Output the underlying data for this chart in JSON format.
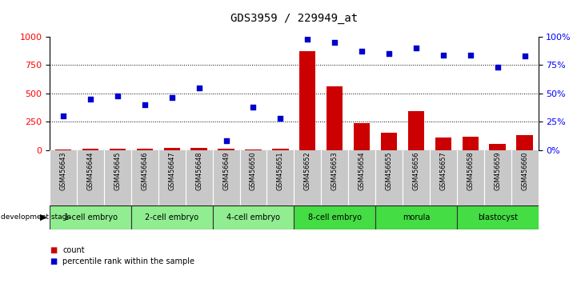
{
  "title": "GDS3959 / 229949_at",
  "samples": [
    "GSM456643",
    "GSM456644",
    "GSM456645",
    "GSM456646",
    "GSM456647",
    "GSM456648",
    "GSM456649",
    "GSM456650",
    "GSM456651",
    "GSM456652",
    "GSM456653",
    "GSM456654",
    "GSM456655",
    "GSM456656",
    "GSM456657",
    "GSM456658",
    "GSM456659",
    "GSM456660"
  ],
  "counts": [
    5,
    8,
    10,
    12,
    15,
    20,
    8,
    7,
    10,
    870,
    560,
    240,
    155,
    340,
    110,
    120,
    55,
    130
  ],
  "percentile": [
    30,
    45,
    48,
    40,
    46,
    55,
    8,
    38,
    28,
    98,
    95,
    87,
    85,
    90,
    84,
    84,
    73,
    83
  ],
  "stages": [
    {
      "label": "1-cell embryo",
      "start": 0,
      "end": 3,
      "color": "#90EE90"
    },
    {
      "label": "2-cell embryo",
      "start": 3,
      "end": 6,
      "color": "#90EE90"
    },
    {
      "label": "4-cell embryo",
      "start": 6,
      "end": 9,
      "color": "#90EE90"
    },
    {
      "label": "8-cell embryo",
      "start": 9,
      "end": 12,
      "color": "#44DD44"
    },
    {
      "label": "morula",
      "start": 12,
      "end": 15,
      "color": "#44DD44"
    },
    {
      "label": "blastocyst",
      "start": 15,
      "end": 18,
      "color": "#44DD44"
    }
  ],
  "bar_color": "#CC0000",
  "dot_color": "#0000CC",
  "ylim_left": [
    0,
    1000
  ],
  "ylim_right": [
    0,
    100
  ],
  "yticks_left": [
    0,
    250,
    500,
    750,
    1000
  ],
  "yticks_right": [
    0,
    25,
    50,
    75,
    100
  ],
  "sample_area_color": "#C8C8C8",
  "legend_count_color": "#CC0000",
  "legend_pct_color": "#0000CC",
  "fig_width": 7.31,
  "fig_height": 3.54,
  "dpi": 100
}
